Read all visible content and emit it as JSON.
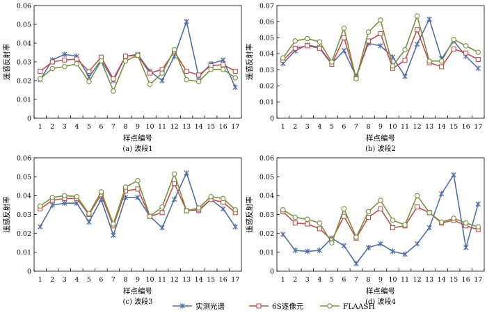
{
  "chart_data": [
    {
      "type": "line",
      "caption": "(a) 波段1",
      "xlabel": "样点编号",
      "ylabel": "遥感反射率",
      "categories": [
        "1",
        "2",
        "3",
        "4",
        "5",
        "6",
        "7",
        "8",
        "9",
        "10",
        "11",
        "12",
        "13",
        "14",
        "15",
        "16",
        "17"
      ],
      "ylim": [
        0,
        0.06
      ],
      "yticks": [
        "0",
        "0.01",
        "0.02",
        "0.03",
        "0.04",
        "0.05",
        "0.06"
      ],
      "grid": false,
      "series": [
        {
          "name": "实测光谱",
          "color": "#4f6fa8",
          "marker": "x",
          "values": [
            0.0205,
            0.031,
            0.034,
            0.033,
            0.022,
            0.031,
            0.02,
            0.033,
            0.034,
            0.025,
            0.02,
            0.033,
            0.0515,
            0.022,
            0.029,
            0.031,
            0.0165
          ]
        },
        {
          "name": "6S逐像元",
          "color": "#c0504d",
          "marker": "square",
          "values": [
            0.025,
            0.03,
            0.031,
            0.0315,
            0.025,
            0.0325,
            0.021,
            0.033,
            0.0335,
            0.024,
            0.026,
            0.0355,
            0.025,
            0.023,
            0.028,
            0.0285,
            0.025
          ]
        },
        {
          "name": "FLAASH",
          "color": "#76923c",
          "marker": "circle",
          "values": [
            0.021,
            0.0265,
            0.0275,
            0.029,
            0.0195,
            0.0305,
            0.0145,
            0.0305,
            0.0335,
            0.018,
            0.024,
            0.0365,
            0.0205,
            0.0195,
            0.026,
            0.026,
            0.0215
          ]
        }
      ]
    },
    {
      "type": "line",
      "caption": "(b) 波段2",
      "xlabel": "样点编号",
      "ylabel": "遥感反射率",
      "categories": [
        "1",
        "2",
        "3",
        "4",
        "5",
        "6",
        "7",
        "8",
        "9",
        "10",
        "11",
        "12",
        "13",
        "14",
        "15",
        "16",
        "17"
      ],
      "ylim": [
        0,
        0.07
      ],
      "yticks": [
        "0",
        "0.01",
        "0.02",
        "0.03",
        "0.04",
        "0.05",
        "0.06",
        "0.07"
      ],
      "grid": false,
      "series": [
        {
          "name": "实测光谱",
          "color": "#4f6fa8",
          "marker": "x",
          "values": [
            0.034,
            0.042,
            0.0455,
            0.044,
            0.034,
            0.042,
            0.026,
            0.0465,
            0.045,
            0.038,
            0.026,
            0.046,
            0.0615,
            0.037,
            0.048,
            0.0385,
            0.031
          ]
        },
        {
          "name": "6S逐像元",
          "color": "#c0504d",
          "marker": "square",
          "values": [
            0.036,
            0.0435,
            0.045,
            0.0435,
            0.0335,
            0.05,
            0.025,
            0.048,
            0.0525,
            0.031,
            0.036,
            0.055,
            0.0345,
            0.032,
            0.043,
            0.0405,
            0.0365
          ]
        },
        {
          "name": "FLAASH",
          "color": "#76923c",
          "marker": "circle",
          "values": [
            0.0375,
            0.048,
            0.0495,
            0.0475,
            0.035,
            0.056,
            0.0245,
            0.0535,
            0.061,
            0.0325,
            0.0425,
            0.0635,
            0.0355,
            0.0355,
            0.049,
            0.045,
            0.041
          ]
        }
      ]
    },
    {
      "type": "line",
      "caption": "(c) 波段3",
      "xlabel": "样点编号",
      "ylabel": "遥感反射率",
      "categories": [
        "1",
        "2",
        "3",
        "4",
        "5",
        "6",
        "7",
        "8",
        "9",
        "10",
        "11",
        "12",
        "13",
        "14",
        "15",
        "16",
        "17"
      ],
      "ylim": [
        0,
        0.06
      ],
      "yticks": [
        "0",
        "0.01",
        "0.02",
        "0.03",
        "0.04",
        "0.05",
        "0.06"
      ],
      "grid": false,
      "series": [
        {
          "name": "实测光谱",
          "color": "#4f6fa8",
          "marker": "x",
          "values": [
            0.0235,
            0.035,
            0.036,
            0.036,
            0.026,
            0.038,
            0.019,
            0.039,
            0.039,
            0.029,
            0.023,
            0.038,
            0.052,
            0.032,
            0.038,
            0.033,
            0.0235
          ]
        },
        {
          "name": "6S逐像元",
          "color": "#c0504d",
          "marker": "square",
          "values": [
            0.033,
            0.0375,
            0.0385,
            0.0385,
            0.03,
            0.0405,
            0.024,
            0.0425,
            0.0435,
            0.029,
            0.031,
            0.0465,
            0.032,
            0.0325,
            0.038,
            0.0365,
            0.031
          ]
        },
        {
          "name": "FLAASH",
          "color": "#76923c",
          "marker": "circle",
          "values": [
            0.0345,
            0.039,
            0.04,
            0.0395,
            0.0305,
            0.042,
            0.025,
            0.0445,
            0.048,
            0.029,
            0.034,
            0.0515,
            0.032,
            0.0335,
            0.0395,
            0.0385,
            0.0325
          ]
        }
      ]
    },
    {
      "type": "line",
      "caption": "(d) 波段4",
      "xlabel": "样点编号",
      "ylabel": "遥感反射率",
      "categories": [
        "1",
        "2",
        "3",
        "4",
        "5",
        "6",
        "7",
        "8",
        "9",
        "10",
        "11",
        "12",
        "13",
        "14",
        "15",
        "16",
        "17"
      ],
      "ylim": [
        0,
        0.06
      ],
      "yticks": [
        "0",
        "0.01",
        "0.02",
        "0.03",
        "0.04",
        "0.05",
        "0.06"
      ],
      "grid": false,
      "series": [
        {
          "name": "实测光谱",
          "color": "#4f6fa8",
          "marker": "x",
          "values": [
            0.0195,
            0.011,
            0.0105,
            0.011,
            0.0175,
            0.0135,
            0.004,
            0.0125,
            0.0145,
            0.0105,
            0.009,
            0.0145,
            0.023,
            0.041,
            0.051,
            0.0125,
            0.0355
          ]
        },
        {
          "name": "6S逐像元",
          "color": "#c0504d",
          "marker": "square",
          "values": [
            0.0315,
            0.0255,
            0.025,
            0.0225,
            0.0165,
            0.029,
            0.0175,
            0.0285,
            0.033,
            0.023,
            0.024,
            0.034,
            0.031,
            0.0255,
            0.027,
            0.024,
            0.022
          ]
        },
        {
          "name": "FLAASH",
          "color": "#76923c",
          "marker": "circle",
          "values": [
            0.0325,
            0.0285,
            0.0275,
            0.0255,
            0.015,
            0.033,
            0.018,
            0.0315,
            0.0375,
            0.027,
            0.0245,
            0.04,
            0.031,
            0.026,
            0.028,
            0.0255,
            0.0235
          ]
        }
      ]
    }
  ],
  "legend": {
    "placement": "bottom-center",
    "entries": [
      "实测光谱",
      "6S逐像元",
      "FLAASH"
    ]
  }
}
